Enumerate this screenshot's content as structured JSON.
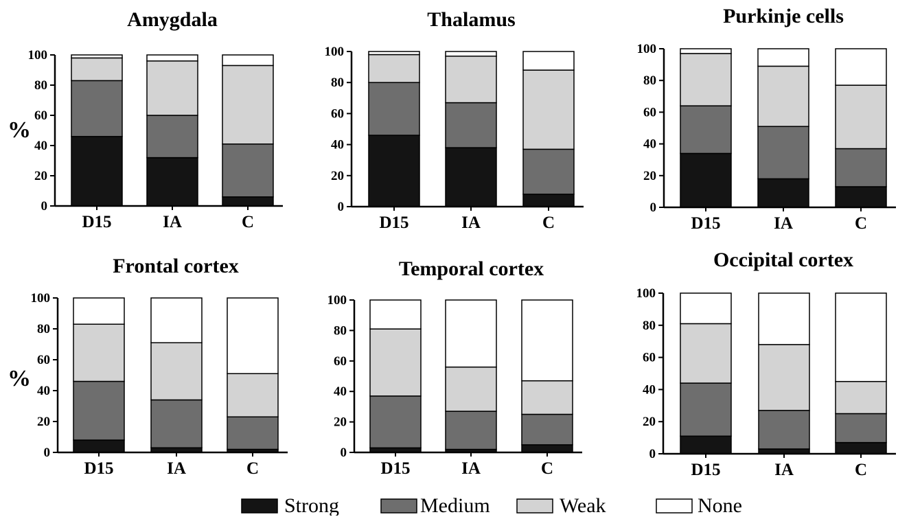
{
  "figure": {
    "y_label": "%",
    "legend": [
      {
        "label": "Strong",
        "color": "#141414"
      },
      {
        "label": "Medium",
        "color": "#6e6e6e"
      },
      {
        "label": "Weak",
        "color": "#d3d3d3"
      },
      {
        "label": "None",
        "color": "#ffffff"
      }
    ]
  },
  "chart_data": [
    {
      "type": "bar",
      "stacked": true,
      "title": "Amygdala",
      "categories": [
        "D15",
        "IA",
        "C"
      ],
      "ylim": [
        0,
        100
      ],
      "yticks": [
        "0",
        "20",
        "40",
        "60",
        "80",
        "100"
      ],
      "series": [
        {
          "name": "Strong",
          "values": [
            46,
            32,
            6
          ]
        },
        {
          "name": "Medium",
          "values": [
            37,
            28,
            35
          ]
        },
        {
          "name": "Weak",
          "values": [
            15,
            36,
            52
          ]
        },
        {
          "name": "None",
          "values": [
            2,
            4,
            7
          ]
        }
      ]
    },
    {
      "type": "bar",
      "stacked": true,
      "title": "Thalamus",
      "categories": [
        "D15",
        "IA",
        "C"
      ],
      "ylim": [
        0,
        100
      ],
      "yticks": [
        "0",
        "20",
        "40",
        "60",
        "80",
        "100"
      ],
      "series": [
        {
          "name": "Strong",
          "values": [
            46,
            38,
            8
          ]
        },
        {
          "name": "Medium",
          "values": [
            34,
            29,
            29
          ]
        },
        {
          "name": "Weak",
          "values": [
            18,
            30,
            51
          ]
        },
        {
          "name": "None",
          "values": [
            2,
            3,
            12
          ]
        }
      ]
    },
    {
      "type": "bar",
      "stacked": true,
      "title": "Purkinje cells",
      "categories": [
        "D15",
        "IA",
        "C"
      ],
      "ylim": [
        0,
        100
      ],
      "yticks": [
        "0",
        "20",
        "40",
        "60",
        "80",
        "100"
      ],
      "series": [
        {
          "name": "Strong",
          "values": [
            34,
            18,
            13
          ]
        },
        {
          "name": "Medium",
          "values": [
            30,
            33,
            24
          ]
        },
        {
          "name": "Weak",
          "values": [
            33,
            38,
            40
          ]
        },
        {
          "name": "None",
          "values": [
            3,
            11,
            23
          ]
        }
      ]
    },
    {
      "type": "bar",
      "stacked": true,
      "title": "Frontal cortex",
      "categories": [
        "D15",
        "IA",
        "C"
      ],
      "ylim": [
        0,
        100
      ],
      "yticks": [
        "0",
        "20",
        "40",
        "60",
        "80",
        "100"
      ],
      "series": [
        {
          "name": "Strong",
          "values": [
            8,
            3,
            2
          ]
        },
        {
          "name": "Medium",
          "values": [
            38,
            31,
            21
          ]
        },
        {
          "name": "Weak",
          "values": [
            37,
            37,
            28
          ]
        },
        {
          "name": "None",
          "values": [
            17,
            29,
            49
          ]
        }
      ]
    },
    {
      "type": "bar",
      "stacked": true,
      "title": "Temporal cortex",
      "categories": [
        "D15",
        "IA",
        "C"
      ],
      "ylim": [
        0,
        100
      ],
      "yticks": [
        "0",
        "20",
        "40",
        "60",
        "80",
        "100"
      ],
      "series": [
        {
          "name": "Strong",
          "values": [
            3,
            2,
            5
          ]
        },
        {
          "name": "Medium",
          "values": [
            34,
            25,
            20
          ]
        },
        {
          "name": "Weak",
          "values": [
            44,
            29,
            22
          ]
        },
        {
          "name": "None",
          "values": [
            19,
            44,
            53
          ]
        }
      ]
    },
    {
      "type": "bar",
      "stacked": true,
      "title": "Occipital cortex",
      "categories": [
        "D15",
        "IA",
        "C"
      ],
      "ylim": [
        0,
        100
      ],
      "yticks": [
        "0",
        "20",
        "40",
        "60",
        "80",
        "100"
      ],
      "series": [
        {
          "name": "Strong",
          "values": [
            11,
            3,
            7
          ]
        },
        {
          "name": "Medium",
          "values": [
            33,
            24,
            18
          ]
        },
        {
          "name": "Weak",
          "values": [
            37,
            41,
            20
          ]
        },
        {
          "name": "None",
          "values": [
            19,
            32,
            55
          ]
        }
      ]
    }
  ]
}
